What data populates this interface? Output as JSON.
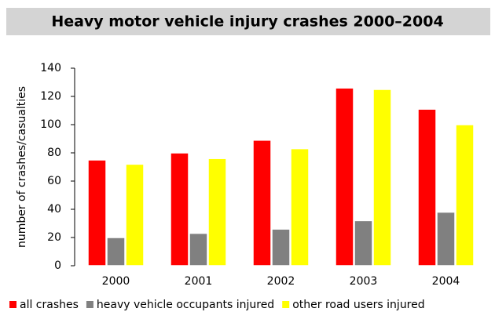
{
  "chart_data": {
    "type": "bar",
    "title": "Heavy motor vehicle injury crashes 2000–2004",
    "y_label": "number of crashes/casualties",
    "categories": [
      "2000",
      "2001",
      "2002",
      "2003",
      "2004"
    ],
    "series": [
      {
        "name": "all crashes",
        "color": "#ff0000",
        "values": [
          75,
          80,
          89,
          126,
          111
        ]
      },
      {
        "name": "heavy vehicle occupants injured",
        "color": "#808080",
        "values": [
          20,
          23,
          26,
          32,
          38
        ]
      },
      {
        "name": "other road users injured",
        "color": "#ffff00",
        "values": [
          72,
          76,
          83,
          125,
          100
        ]
      }
    ],
    "ylim": [
      0,
      140
    ],
    "yticks": [
      0,
      20,
      40,
      60,
      80,
      100,
      120,
      140
    ],
    "legend": "bottom"
  }
}
